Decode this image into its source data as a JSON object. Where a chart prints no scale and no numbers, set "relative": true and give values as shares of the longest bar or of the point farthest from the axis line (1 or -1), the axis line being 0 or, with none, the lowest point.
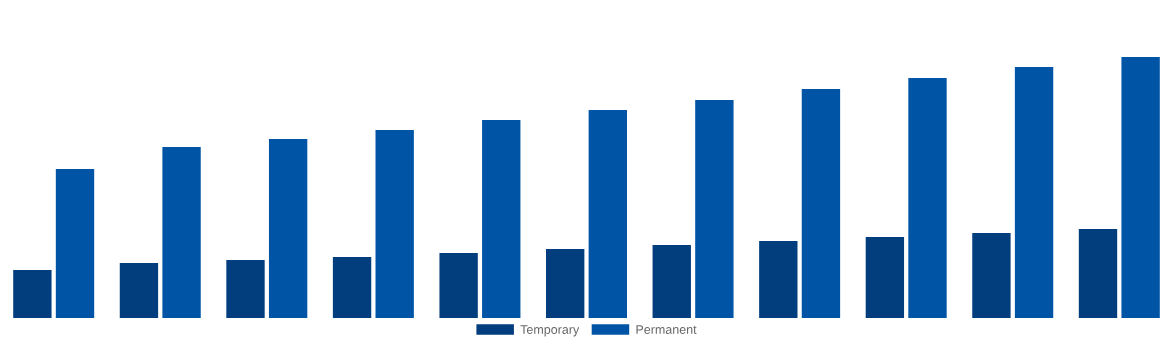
{
  "chart_data": {
    "type": "bar",
    "relative": true,
    "categories": [
      null,
      null,
      null,
      null,
      null,
      null,
      null,
      null,
      null,
      null,
      null
    ],
    "series": [
      {
        "name": "Temporary",
        "color": "#023d7e",
        "values": [
          0.184,
          0.211,
          0.222,
          0.234,
          0.249,
          0.264,
          0.28,
          0.295,
          0.31,
          0.326,
          0.341
        ]
      },
      {
        "name": "Permanent",
        "color": "#0054a6",
        "values": [
          0.571,
          0.655,
          0.686,
          0.72,
          0.759,
          0.797,
          0.835,
          0.877,
          0.92,
          0.962,
          1
        ]
      }
    ],
    "legend": "bottom",
    "grid": false
  }
}
